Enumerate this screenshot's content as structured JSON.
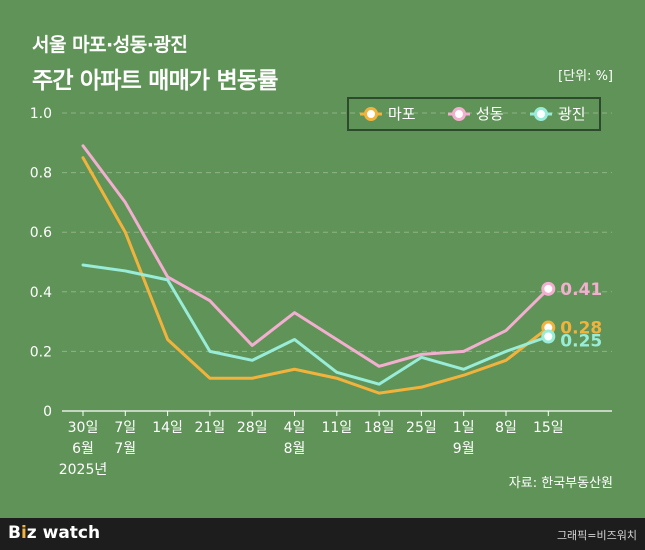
{
  "header": {
    "title_line1": "서울 마포·성동·광진",
    "title_line2": "주간 아파트 매매가 변동률",
    "unit": "[단위: %]"
  },
  "source": "자료: 한국부동산원",
  "footer": {
    "logo_b": "B",
    "logo_z": "i",
    "logo_rest": "z watch",
    "credit": "그래픽=비즈워치"
  },
  "colors": {
    "background": "#5f9358",
    "grid": "#8fb585",
    "mapo": "#f2b33c",
    "seongdong": "#f3afcf",
    "gwangjin": "#98ecd8"
  },
  "chart_data": {
    "type": "line",
    "title": "서울 마포·성동·광진 주간 아파트 매매가 변동률",
    "ylabel": "%",
    "ylim": [
      0,
      1.0
    ],
    "yticks": [
      0,
      0.2,
      0.4,
      0.6,
      0.8,
      1.0
    ],
    "ytick_labels": [
      "0",
      "0.2",
      "0.4",
      "0.6",
      "0.8",
      "1.0"
    ],
    "grid": true,
    "legend_position": "top-right",
    "categories": [
      "30일",
      "7일",
      "14일",
      "21일",
      "28일",
      "4일",
      "11일",
      "18일",
      "25일",
      "1일",
      "8일",
      "15일"
    ],
    "month_labels": [
      {
        "index": 0,
        "label": "6월"
      },
      {
        "index": 1,
        "label": "7월"
      },
      {
        "index": 5,
        "label": "8월"
      },
      {
        "index": 9,
        "label": "9월"
      }
    ],
    "year_label": {
      "index": 0,
      "label": "2025년"
    },
    "series": [
      {
        "name": "마포",
        "key": "mapo",
        "values": [
          0.85,
          0.6,
          0.24,
          0.11,
          0.11,
          0.14,
          0.11,
          0.06,
          0.08,
          0.12,
          0.17,
          0.28
        ],
        "end_label": "0.28"
      },
      {
        "name": "성동",
        "key": "seongdong",
        "values": [
          0.89,
          0.7,
          0.45,
          0.37,
          0.22,
          0.33,
          0.24,
          0.15,
          0.19,
          0.2,
          0.27,
          0.41
        ],
        "end_label": "0.41"
      },
      {
        "name": "광진",
        "key": "gwangjin",
        "values": [
          0.49,
          0.47,
          0.44,
          0.2,
          0.17,
          0.24,
          0.13,
          0.09,
          0.18,
          0.14,
          0.2,
          0.25
        ],
        "end_label": "0.25"
      }
    ]
  }
}
